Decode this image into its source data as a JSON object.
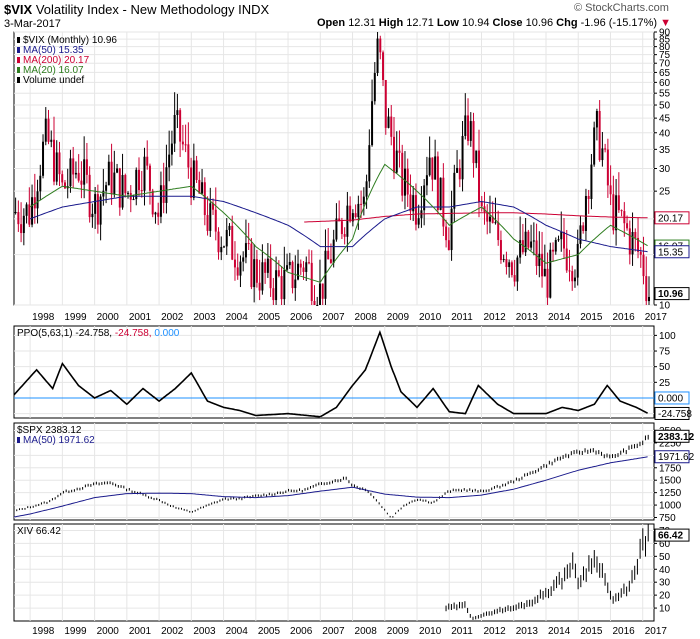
{
  "header": {
    "symbol": "$VIX",
    "name": "Volatility Index - New Methodology",
    "exchange": "INDX",
    "date": "3-Mar-2017",
    "watermark": "© StockCharts.com",
    "open_label": "Open",
    "open": "12.31",
    "high_label": "High",
    "high": "12.71",
    "low_label": "Low",
    "low": "10.94",
    "close_label": "Close",
    "close": "10.96",
    "chg_label": "Chg",
    "chg": "-1.96 (-15.17%)"
  },
  "colors": {
    "price_up": "#000000",
    "price_down": "#cc0033",
    "ma50": "#1a1a8c",
    "ma200": "#cc0033",
    "ma20": "#2e7d1f",
    "grid": "#e6e6e6",
    "ppo_zero": "#1e90ff",
    "accent_down": "#cc0033"
  },
  "x_axis": {
    "years": [
      "1998",
      "1999",
      "2000",
      "2001",
      "2002",
      "2003",
      "2004",
      "2005",
      "2006",
      "2007",
      "2008",
      "2009",
      "2010",
      "2011",
      "2012",
      "2013",
      "2014",
      "2015",
      "2016",
      "2017"
    ]
  },
  "chart_data": [
    {
      "type": "line",
      "title": "$VIX (Monthly) 10.96",
      "series": [
        {
          "name": "$VIX (Monthly)",
          "label": "$VIX (Monthly) 10.96",
          "last": "10.96",
          "x": [
            1998,
            1998.5,
            1999,
            1999.5,
            2000,
            2000.5,
            2001,
            2001.5,
            2002,
            2002.5,
            2003,
            2003.5,
            2004,
            2004.5,
            2005,
            2005.5,
            2006,
            2006.5,
            2007,
            2007.5,
            2008,
            2008.4,
            2008.8,
            2009,
            2009.5,
            2010,
            2010.4,
            2010.8,
            2011,
            2011.6,
            2012,
            2012.5,
            2013,
            2013.5,
            2014,
            2014.5,
            2015,
            2015.6,
            2016,
            2016.5,
            2017,
            2017.17
          ],
          "values": [
            21,
            38,
            25,
            30,
            22,
            28,
            24,
            31,
            20,
            42,
            28,
            20,
            17,
            15,
            13,
            12,
            12,
            14,
            11,
            17,
            24,
            22,
            80,
            46,
            27,
            22,
            34,
            21,
            18,
            43,
            20,
            17,
            14,
            16,
            12,
            16,
            14,
            41,
            22,
            18,
            14,
            10.96
          ]
        },
        {
          "name": "MA(50)",
          "label": "MA(50) 15.35",
          "last": "15.35",
          "x": [
            1998,
            1999,
            2000,
            2001,
            2002,
            2003,
            2004,
            2005,
            2006,
            2007,
            2008,
            2009,
            2010,
            2011,
            2012,
            2013,
            2014,
            2015,
            2016,
            2017.17
          ],
          "values": [
            20,
            22,
            23,
            24,
            24,
            24,
            23,
            21,
            19,
            16,
            16,
            20,
            22,
            22,
            23,
            22,
            19,
            17,
            16,
            15.35
          ]
        },
        {
          "name": "MA(200)",
          "label": "MA(200) 20.17",
          "last": "20.17",
          "x": [
            2006.5,
            2007,
            2008,
            2009,
            2010,
            2011,
            2012,
            2013,
            2014,
            2015,
            2016,
            2017.17
          ],
          "values": [
            19.5,
            19.6,
            19.8,
            20.4,
            20.8,
            20.9,
            21,
            21,
            20.8,
            20.5,
            20.3,
            20.17
          ]
        },
        {
          "name": "MA(20)",
          "label": "MA(20) 16.07",
          "last": "16.07",
          "x": [
            1998,
            1999,
            2000,
            2001,
            2002,
            2003,
            2004,
            2005,
            2006,
            2007,
            2008,
            2009,
            2010,
            2011,
            2012,
            2013,
            2014,
            2015,
            2016,
            2017.17
          ],
          "values": [
            22,
            26,
            25,
            24,
            25,
            26,
            21,
            16,
            13,
            12,
            17,
            31,
            25,
            19,
            22,
            17,
            14,
            15,
            19,
            16.07
          ]
        }
      ],
      "volume_label": "Volume undef",
      "ylim": [
        10,
        90
      ],
      "yscale": "log",
      "yticks": [
        "90",
        "85",
        "80",
        "75",
        "70",
        "65",
        "60",
        "55",
        "50",
        "45",
        "40",
        "35",
        "30",
        "25",
        "20",
        "15",
        "10"
      ]
    },
    {
      "type": "line",
      "title": "PPO(5,63,1) -24.758, -24.758, 0.000",
      "legend": {
        "name": "PPO(5,63,1)",
        "v1": "-24.758,",
        "v2": "-24.758,",
        "v3": "0.000"
      },
      "series": [
        {
          "name": "PPO(5,63,1)",
          "last": "-24.758",
          "x": [
            1997.5,
            1998.2,
            1998.7,
            1999,
            1999.5,
            2000,
            2000.5,
            2001,
            2001.5,
            2002,
            2002.5,
            2003,
            2003.5,
            2004,
            2004.5,
            2005,
            2006,
            2007,
            2007.5,
            2008,
            2008.4,
            2008.85,
            2009.2,
            2009.5,
            2010,
            2010.5,
            2011,
            2011.5,
            2011.9,
            2012.5,
            2013,
            2014,
            2014.5,
            2015,
            2015.5,
            2015.9,
            2016.3,
            2016.8,
            2017.17
          ],
          "values": [
            5,
            45,
            15,
            55,
            20,
            0,
            12,
            -10,
            15,
            -5,
            15,
            40,
            -5,
            -15,
            -20,
            -28,
            -25,
            -30,
            -15,
            20,
            45,
            105,
            50,
            10,
            -15,
            15,
            -22,
            -25,
            20,
            -10,
            -25,
            -25,
            -15,
            -20,
            -10,
            20,
            -5,
            -15,
            -24.758
          ]
        }
      ],
      "zero_line": "0.000",
      "ylim": [
        -32,
        115
      ],
      "yticks": [
        "100",
        "75",
        "50",
        "25",
        "0",
        "-25"
      ],
      "value_labels": [
        "0.000",
        "-24.758"
      ]
    },
    {
      "type": "line",
      "title": "$SPX 2383.12",
      "series": [
        {
          "name": "$SPX",
          "label": "$SPX 2383.12",
          "last": "2383.12",
          "x": [
            1997.5,
            1998,
            1998.6,
            1999,
            1999.5,
            2000,
            2000.5,
            2001,
            2001.5,
            2002,
            2002.5,
            2003,
            2003.5,
            2004,
            2004.5,
            2005,
            2005.5,
            2006,
            2006.5,
            2007,
            2007.8,
            2008,
            2008.5,
            2009,
            2009.2,
            2009.6,
            2010,
            2010.5,
            2011,
            2011.5,
            2012,
            2012.5,
            2013,
            2013.5,
            2014,
            2014.5,
            2015,
            2015.5,
            2016,
            2016.5,
            2017,
            2017.17
          ],
          "values": [
            880,
            960,
            1070,
            1250,
            1330,
            1420,
            1450,
            1320,
            1210,
            1100,
            950,
            860,
            990,
            1120,
            1130,
            1180,
            1220,
            1280,
            1300,
            1420,
            1540,
            1400,
            1280,
            900,
            740,
            1000,
            1120,
            1050,
            1280,
            1310,
            1270,
            1360,
            1480,
            1630,
            1800,
            1960,
            2060,
            2100,
            1950,
            2100,
            2260,
            2383.12
          ]
        },
        {
          "name": "MA(50)",
          "label": "MA(50) 1971.62",
          "last": "1971.62",
          "x": [
            1997.5,
            1998,
            1999,
            2000,
            2001,
            2002,
            2003,
            2004,
            2005,
            2006,
            2007,
            2008,
            2009,
            2010,
            2011,
            2012,
            2013,
            2014,
            2015,
            2016,
            2017.17
          ],
          "values": [
            760,
            820,
            980,
            1150,
            1230,
            1240,
            1230,
            1170,
            1150,
            1190,
            1280,
            1360,
            1220,
            1160,
            1150,
            1200,
            1320,
            1500,
            1700,
            1850,
            1971.62
          ]
        }
      ],
      "ylim": [
        700,
        2650
      ],
      "yticks": [
        "2500",
        "2250",
        "2000",
        "1750",
        "1500",
        "1250",
        "1000",
        "750"
      ]
    },
    {
      "type": "line",
      "title": "XIV 66.42",
      "series": [
        {
          "name": "XIV",
          "label": "XIV 66.42",
          "last": "66.42",
          "x": [
            2010.9,
            2011.2,
            2011.5,
            2011.7,
            2012,
            2012.5,
            2013,
            2013.5,
            2014,
            2014.5,
            2014.8,
            2015,
            2015.4,
            2015.6,
            2016,
            2016.1,
            2016.5,
            2016.8,
            2017,
            2017.17
          ],
          "values": [
            10,
            11,
            12,
            2,
            4,
            8,
            10,
            14,
            22,
            32,
            45,
            30,
            45,
            48,
            20,
            15,
            25,
            38,
            60,
            66.42
          ]
        }
      ],
      "ylim": [
        0,
        75
      ],
      "yticks": [
        "70",
        "60",
        "50",
        "40",
        "30",
        "20",
        "10"
      ]
    }
  ]
}
